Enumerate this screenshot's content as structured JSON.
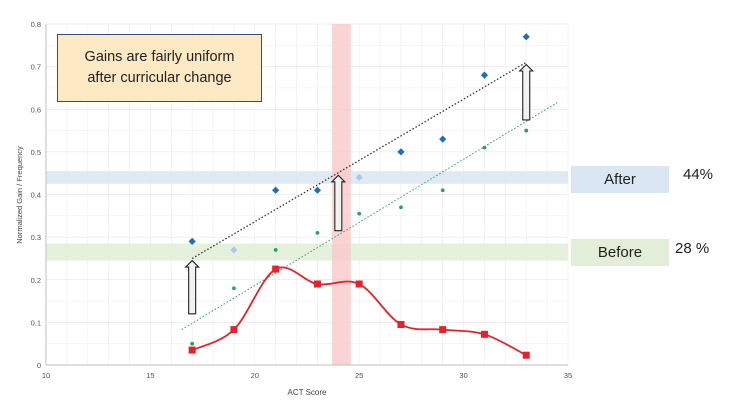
{
  "callout": {
    "line1": "Gains are fairly uniform",
    "line2": "after curricular change"
  },
  "labels": {
    "after_tag": "After",
    "after_pct": "44%",
    "before_tag": "Before",
    "before_pct": "28 %"
  },
  "colors": {
    "after_points": "#1f6fb5",
    "after_highlight_point": "#a9c8e8",
    "before_points": "#2ca25f",
    "frequency_line": "#e8202a",
    "after_band": "#dae6f3",
    "before_band": "#e2eed7",
    "act_band": "#f9c9c9",
    "arrow_fill": "#f2f2f2",
    "arrow_stroke": "#222222"
  },
  "chart_data": {
    "type": "scatter",
    "xlabel": "ACT Score",
    "ylabel": "Normalized Gain / Frequency",
    "xlim": [
      10,
      35
    ],
    "ylim": [
      0,
      0.8
    ],
    "xticks": [
      10,
      15,
      20,
      25,
      30,
      35
    ],
    "yticks": [
      0,
      0.1,
      0.2,
      0.3,
      0.4,
      0.5,
      0.6,
      0.7,
      0.8
    ],
    "grid": true,
    "series": [
      {
        "kind": "scatter-diamond",
        "x": [
          17,
          19,
          21,
          23,
          25,
          27,
          29,
          31,
          33
        ],
        "y": [
          0.29,
          0.27,
          0.41,
          0.41,
          0.44,
          0.5,
          0.53,
          0.68,
          0.77
        ],
        "highlight_index": [
          1,
          4
        ],
        "trendline": {
          "x": [
            17,
            33
          ],
          "y": [
            0.25,
            0.71
          ]
        }
      },
      {
        "kind": "scatter-dot",
        "x": [
          17,
          19,
          21,
          23,
          25,
          27,
          29,
          31,
          33
        ],
        "y": [
          0.05,
          0.18,
          0.27,
          0.31,
          0.355,
          0.37,
          0.41,
          0.51,
          0.55
        ],
        "trendline": {
          "x": [
            16.5,
            34.5
          ],
          "y": [
            0.083,
            0.616
          ]
        }
      },
      {
        "kind": "smooth-line-square",
        "x": [
          17,
          19,
          21,
          23,
          25,
          27,
          29,
          31,
          33
        ],
        "y": [
          0.035,
          0.083,
          0.225,
          0.19,
          0.19,
          0.095,
          0.083,
          0.072,
          0.023
        ]
      }
    ],
    "bands": {
      "after_y": [
        0.425,
        0.455
      ],
      "before_y": [
        0.245,
        0.285
      ],
      "act_x": [
        23.7,
        24.6
      ]
    },
    "arrows": [
      {
        "x": 17,
        "y_from": 0.12,
        "y_to": 0.245
      },
      {
        "x": 24,
        "y_from": 0.315,
        "y_to": 0.445
      },
      {
        "x": 33,
        "y_from": 0.575,
        "y_to": 0.705
      }
    ]
  }
}
